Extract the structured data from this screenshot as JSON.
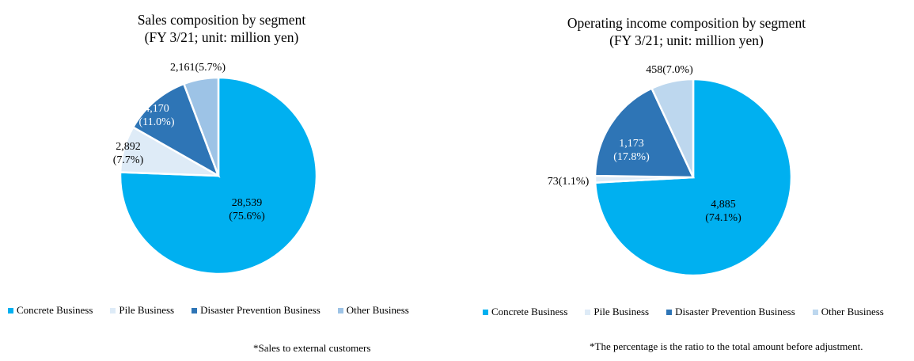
{
  "chart_data": [
    {
      "type": "pie",
      "title": "Sales composition by segment",
      "subtitle": "(FY 3/21; unit: million yen)",
      "categories": [
        "Concrete Business",
        "Pile Business",
        "Disaster Prevention Business",
        "Other Business"
      ],
      "values": [
        28539,
        2892,
        4170,
        2161
      ],
      "percent_labels": [
        "75.6%",
        "7.7%",
        "11.0%",
        "5.7%"
      ],
      "value_labels": [
        "28,539",
        "2,892",
        "4,170",
        "2,161"
      ],
      "colors": [
        "#00b0f0",
        "#deebf7",
        "#2e75b6",
        "#9dc3e6"
      ],
      "note": "*Sales to external customers",
      "legend": "bottom"
    },
    {
      "type": "pie",
      "title": "Operating income composition by segment",
      "subtitle": "(FY 3/21; unit: million yen)",
      "categories": [
        "Concrete Business",
        "Pile Business",
        "Disaster Prevention Business",
        "Other Business"
      ],
      "values": [
        4885,
        73,
        1173,
        458
      ],
      "percent_labels": [
        "74.1%",
        "1.1%",
        "17.8%",
        "7.0%"
      ],
      "value_labels": [
        "4,885",
        "73",
        "1,173",
        "458"
      ],
      "colors": [
        "#00b0f0",
        "#deebf7",
        "#2e75b6",
        "#bdd7ee"
      ],
      "note": "*The percentage is the ratio to the total amount before adjustment.",
      "legend": "bottom"
    }
  ]
}
